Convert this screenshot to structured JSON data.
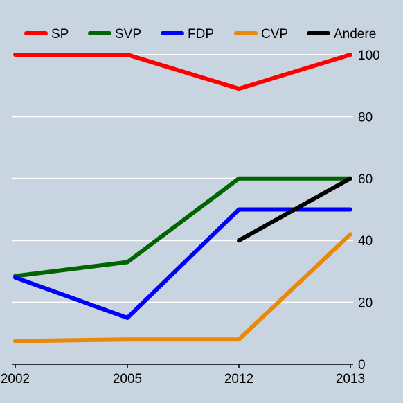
{
  "chart_data": {
    "type": "line",
    "title": "",
    "xlabel": "",
    "ylabel": "",
    "x": [
      "2002",
      "2005",
      "2012",
      "2013"
    ],
    "ylim": [
      0,
      100
    ],
    "yticks": [
      0,
      20,
      40,
      60,
      80,
      100
    ],
    "grid": "horizontal",
    "legend_position": "top",
    "background": "#c8d4df",
    "series": [
      {
        "name": "SP",
        "color": "#ff0000",
        "values": [
          100,
          100,
          89,
          100
        ]
      },
      {
        "name": "SVP",
        "color": "#006400",
        "values": [
          28.5,
          33,
          60,
          60
        ]
      },
      {
        "name": "FDP",
        "color": "#0000ff",
        "values": [
          28,
          15,
          50,
          50
        ]
      },
      {
        "name": "CVP",
        "color": "#e8890c",
        "values": [
          7.5,
          8,
          8,
          42
        ]
      },
      {
        "name": "Andere",
        "color": "#000000",
        "values": [
          null,
          null,
          40,
          60
        ]
      }
    ]
  }
}
